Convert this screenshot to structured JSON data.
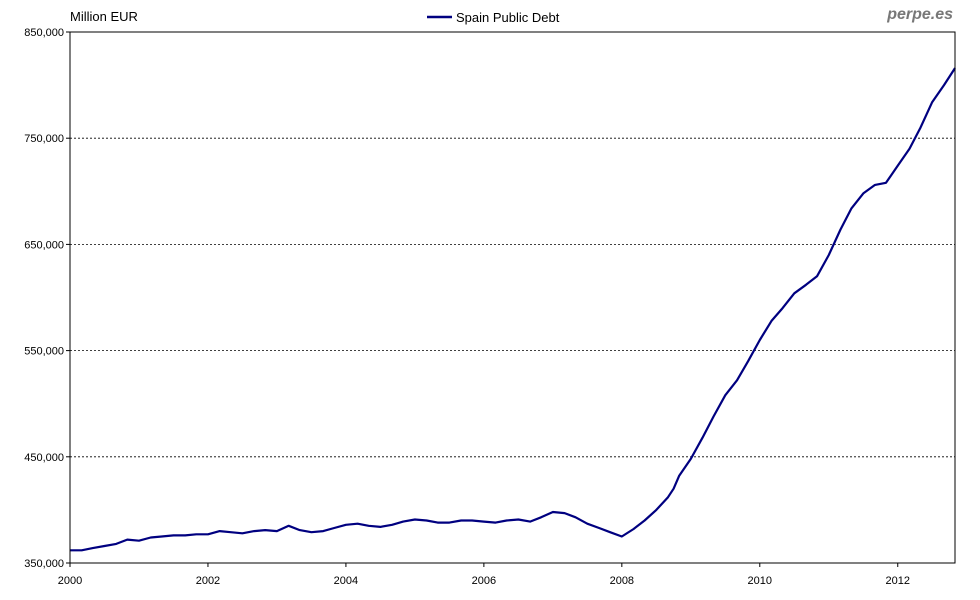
{
  "unit_label": "Million EUR",
  "brand": "perpe.es",
  "colors": {
    "series": "#000080",
    "grid": "#000000",
    "axis": "#000000"
  },
  "chart_data": {
    "type": "line",
    "ylabel": "Million EUR",
    "ylim": [
      350000,
      850000
    ],
    "xlim": [
      2000,
      2012.83
    ],
    "yticks": [
      350000,
      450000,
      550000,
      650000,
      750000,
      850000
    ],
    "ytick_labels": [
      "350,000",
      "450,000",
      "550,000",
      "650,000",
      "750,000",
      "850,000"
    ],
    "xticks": [
      2000,
      2002,
      2004,
      2006,
      2008,
      2010,
      2012
    ],
    "xtick_labels": [
      "2000",
      "2002",
      "2004",
      "2006",
      "2008",
      "2010",
      "2012"
    ],
    "grid": "horizontal dashed",
    "legend": "top-center",
    "series": [
      {
        "name": "Spain Public Debt",
        "x": [
          2000.0,
          2000.17,
          2000.33,
          2000.5,
          2000.67,
          2000.83,
          2001.0,
          2001.17,
          2001.33,
          2001.5,
          2001.67,
          2001.83,
          2002.0,
          2002.17,
          2002.33,
          2002.5,
          2002.67,
          2002.83,
          2003.0,
          2003.17,
          2003.33,
          2003.5,
          2003.67,
          2003.83,
          2004.0,
          2004.17,
          2004.33,
          2004.5,
          2004.67,
          2004.83,
          2005.0,
          2005.17,
          2005.33,
          2005.5,
          2005.67,
          2005.83,
          2006.0,
          2006.17,
          2006.33,
          2006.5,
          2006.67,
          2006.83,
          2007.0,
          2007.17,
          2007.33,
          2007.5,
          2007.67,
          2007.83,
          2008.0,
          2008.17,
          2008.33,
          2008.5,
          2008.67,
          2008.75,
          2008.83,
          2009.0,
          2009.17,
          2009.33,
          2009.5,
          2009.67,
          2009.83,
          2010.0,
          2010.17,
          2010.33,
          2010.5,
          2010.67,
          2010.83,
          2011.0,
          2011.17,
          2011.33,
          2011.5,
          2011.67,
          2011.83,
          2012.0,
          2012.17,
          2012.33,
          2012.5,
          2012.67,
          2012.83
        ],
        "values": [
          362000,
          362000,
          364000,
          366000,
          368000,
          372000,
          371000,
          374000,
          375000,
          376000,
          376000,
          377000,
          377000,
          380000,
          379000,
          378000,
          380000,
          381000,
          380000,
          385000,
          381000,
          379000,
          380000,
          383000,
          386000,
          387000,
          385000,
          384000,
          386000,
          389000,
          391000,
          390000,
          388000,
          388000,
          390000,
          390000,
          389000,
          388000,
          390000,
          391000,
          389000,
          393000,
          398000,
          397000,
          393000,
          387000,
          383000,
          379000,
          375000,
          382000,
          390000,
          400000,
          412000,
          420000,
          432000,
          448000,
          468000,
          488000,
          508000,
          522000,
          540000,
          560000,
          578000,
          590000,
          604000,
          612000,
          620000,
          640000,
          664000,
          684000,
          698000,
          706000,
          708000,
          724000,
          740000,
          760000,
          784000,
          800000,
          816000
        ]
      }
    ]
  }
}
